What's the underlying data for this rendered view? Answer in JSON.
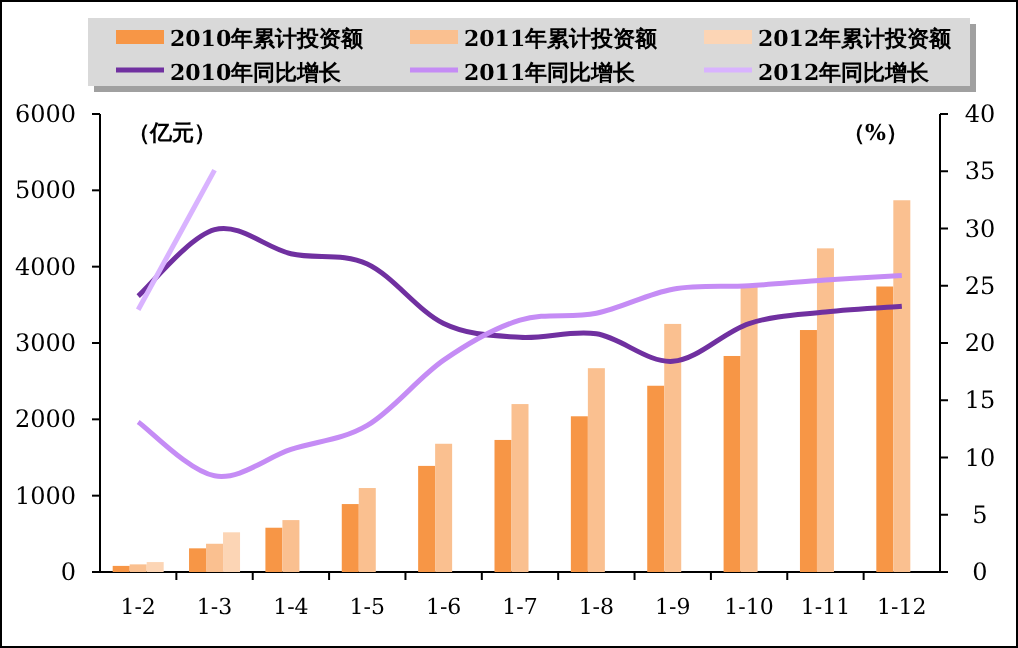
{
  "chart_data": {
    "type": "bar",
    "ylabel": "（亿元）",
    "y2label": "（%）",
    "categories": [
      "1-2",
      "1-3",
      "1-4",
      "1-5",
      "1-6",
      "1-7",
      "1-8",
      "1-9",
      "1-10",
      "1-11",
      "1-12"
    ],
    "series": [
      {
        "name": "2010年累计投资额",
        "color": "#f79646",
        "values": [
          80,
          310,
          580,
          890,
          1390,
          1730,
          2040,
          2440,
          2830,
          3170,
          3740
        ]
      },
      {
        "name": "2011年累计投资额",
        "color": "#fac090",
        "values": [
          100,
          370,
          680,
          1100,
          1680,
          2200,
          2670,
          3250,
          3770,
          4240,
          4870
        ]
      },
      {
        "name": "2012年累计投资额",
        "color": "#fcd5b5",
        "values": [
          130,
          520,
          null,
          null,
          null,
          null,
          null,
          null,
          null,
          null,
          null
        ]
      },
      {
        "name": "2010年同比增长",
        "type": "line",
        "axis": "y2",
        "color": "#7030a0",
        "values": [
          24.1,
          29.9,
          27.8,
          26.9,
          21.7,
          20.5,
          20.8,
          18.4,
          21.7,
          22.7,
          23.2
        ]
      },
      {
        "name": "2011年同比增长",
        "type": "line",
        "axis": "y2",
        "color": "#c58cf5",
        "values": [
          13.1,
          8.4,
          10.7,
          12.8,
          18.5,
          22,
          22.6,
          24.7,
          25,
          25.5,
          25.9
        ]
      },
      {
        "name": "2012年同比增长",
        "type": "line",
        "axis": "y2",
        "color": "#d9b3ff",
        "values": [
          22.9,
          35.1,
          null,
          null,
          null,
          null,
          null,
          null,
          null,
          null,
          null
        ]
      }
    ],
    "ylim": [
      0,
      6000
    ],
    "yticks": [
      0,
      1000,
      2000,
      3000,
      4000,
      5000,
      6000
    ],
    "y2lim": [
      0,
      40
    ],
    "y2ticks": [
      0,
      5,
      10,
      15,
      20,
      25,
      30,
      35,
      40
    ],
    "grid": false,
    "legend": "top",
    "marker": "none",
    "line_style": "solid"
  }
}
